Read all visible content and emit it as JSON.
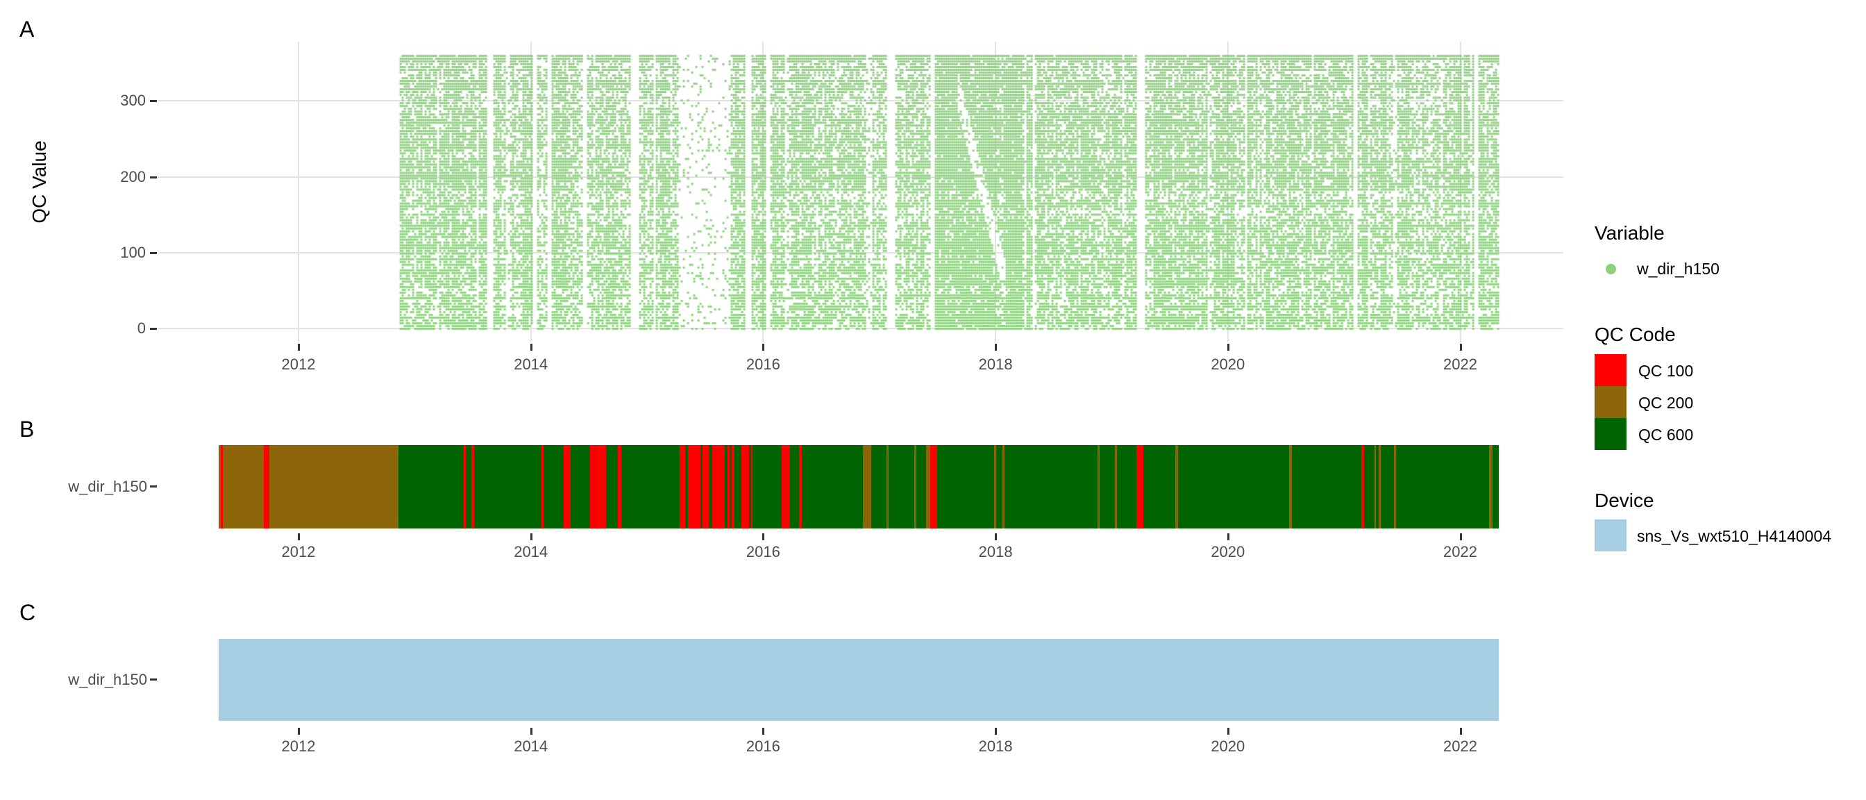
{
  "panels": {
    "a": {
      "tag": "A",
      "y_axis_title": "QC Value",
      "y_ticks": [
        "0",
        "100",
        "200",
        "300"
      ]
    },
    "b": {
      "tag": "B",
      "y_axis_label": "w_dir_h150"
    },
    "c": {
      "tag": "C",
      "y_axis_label": "w_dir_h150"
    }
  },
  "x_ticks": [
    "2012",
    "2014",
    "2016",
    "2018",
    "2020",
    "2022"
  ],
  "colors": {
    "variable_green": "#8BD17C",
    "qc100": "#FF0000",
    "qc200": "#8B6508",
    "qc600": "#006400",
    "device_blue": "#A6CEE3",
    "grid": "#E3E3E3",
    "axis_text": "#4D4D4D"
  },
  "legend": {
    "variable": {
      "title": "Variable",
      "items": [
        {
          "label": "w_dir_h150",
          "color": "#8BD17C",
          "shape": "dot"
        }
      ]
    },
    "qc_code": {
      "title": "QC Code",
      "items": [
        {
          "label": "QC 100",
          "color": "#FF0000"
        },
        {
          "label": "QC 200",
          "color": "#8B6508"
        },
        {
          "label": "QC 600",
          "color": "#006400"
        }
      ]
    },
    "device": {
      "title": "Device",
      "items": [
        {
          "label": "sns_Vs_wxt510_H4140004",
          "color": "#A6CEE3"
        }
      ]
    }
  },
  "chart_data": [
    {
      "id": "A",
      "type": "scatter",
      "ylabel": "QC Value",
      "x_tick_years": [
        2012,
        2014,
        2016,
        2018,
        2020,
        2022
      ],
      "y_tick_values": [
        0,
        100,
        200,
        300
      ],
      "x_range_years": [
        2010.78,
        2022.88
      ],
      "y_range": [
        -18,
        378
      ],
      "legend_position": "right",
      "grid": true,
      "series": [
        {
          "name": "w_dir_h150",
          "color": "#8BD17C",
          "x_start": 2012.87,
          "x_end": 2022.32,
          "y_min": 0,
          "y_max": 360,
          "base_density": 0.62,
          "regions": [
            {
              "from": 2013.62,
              "to": 2013.66,
              "density": 0
            },
            {
              "from": 2014.0,
              "to": 2014.05,
              "density": 0
            },
            {
              "from": 2014.05,
              "to": 2014.14,
              "density": 0.4
            },
            {
              "from": 2014.14,
              "to": 2014.17,
              "density": 0
            },
            {
              "from": 2014.44,
              "to": 2014.47,
              "density": 0
            },
            {
              "from": 2014.85,
              "to": 2014.92,
              "density": 0
            },
            {
              "from": 2015.04,
              "to": 2015.07,
              "density": 0
            },
            {
              "from": 2015.27,
              "to": 2015.7,
              "density": 0.1
            },
            {
              "from": 2015.84,
              "to": 2015.89,
              "density": 0
            },
            {
              "from": 2016.02,
              "to": 2016.06,
              "density": 0
            },
            {
              "from": 2016.88,
              "to": 2016.93,
              "density": 0.15
            },
            {
              "from": 2017.45,
              "to": 2018.25,
              "density": 0.93
            },
            {
              "from": 2017.05,
              "to": 2017.13,
              "density": 0
            },
            {
              "from": 2017.44,
              "to": 2017.47,
              "density": 0
            },
            {
              "from": 2018.31,
              "to": 2018.33,
              "density": 0
            },
            {
              "from": 2019.21,
              "to": 2019.27,
              "density": 0
            },
            {
              "from": 2020.14,
              "to": 2020.16,
              "density": 0
            },
            {
              "from": 2021.08,
              "to": 2021.1,
              "density": 0
            },
            {
              "from": 2021.58,
              "to": 2021.88,
              "density": 0.48
            },
            {
              "from": 2022.12,
              "to": 2022.14,
              "density": 0
            }
          ],
          "streak": {
            "from": 2017.66,
            "to": 2018.08,
            "v_at_from": 320,
            "slope": -620,
            "half_width": 26,
            "factor": 0.18
          }
        }
      ]
    },
    {
      "id": "B",
      "type": "timeline",
      "row_label": "w_dir_h150",
      "x_tick_years": [
        2012,
        2014,
        2016,
        2018,
        2020,
        2022
      ],
      "bar_start": 2011.31,
      "bar_end": 2022.33,
      "base_segments": [
        {
          "code": "QC 200",
          "from": 2011.31,
          "to": 2012.86
        },
        {
          "code": "QC 600",
          "from": 2012.86,
          "to": 2022.33
        }
      ],
      "events": [
        {
          "code": "QC 100",
          "from": 2011.33,
          "to": 2011.35
        },
        {
          "code": "QC 100",
          "from": 2011.7,
          "to": 2011.75
        },
        {
          "code": "QC 100",
          "from": 2013.42,
          "to": 2013.44
        },
        {
          "code": "QC 100",
          "from": 2013.49,
          "to": 2013.51
        },
        {
          "code": "QC 100",
          "from": 2014.09,
          "to": 2014.11
        },
        {
          "code": "QC 100",
          "from": 2014.28,
          "to": 2014.34
        },
        {
          "code": "QC 100",
          "from": 2014.51,
          "to": 2014.55
        },
        {
          "code": "QC 100",
          "from": 2014.56,
          "to": 2014.65
        },
        {
          "code": "QC 100",
          "from": 2014.75,
          "to": 2014.78
        },
        {
          "code": "QC 100",
          "from": 2015.28,
          "to": 2015.33
        },
        {
          "code": "QC 100",
          "from": 2015.35,
          "to": 2015.46
        },
        {
          "code": "QC 100",
          "from": 2015.48,
          "to": 2015.53
        },
        {
          "code": "QC 100",
          "from": 2015.56,
          "to": 2015.67
        },
        {
          "code": "QC 100",
          "from": 2015.69,
          "to": 2015.71
        },
        {
          "code": "QC 100",
          "from": 2015.73,
          "to": 2015.75
        },
        {
          "code": "QC 100",
          "from": 2015.81,
          "to": 2015.88
        },
        {
          "code": "QC 100",
          "from": 2015.895,
          "to": 2015.91
        },
        {
          "code": "QC 100",
          "from": 2016.16,
          "to": 2016.23
        },
        {
          "code": "QC 100",
          "from": 2016.31,
          "to": 2016.33
        },
        {
          "code": "QC 200",
          "from": 2016.86,
          "to": 2016.93
        },
        {
          "code": "QC 200",
          "from": 2017.06,
          "to": 2017.08
        },
        {
          "code": "QC 200",
          "from": 2017.3,
          "to": 2017.32
        },
        {
          "code": "QC 200",
          "from": 2017.4,
          "to": 2017.44
        },
        {
          "code": "QC 100",
          "from": 2017.44,
          "to": 2017.5
        },
        {
          "code": "QC 200",
          "from": 2017.99,
          "to": 2018.005
        },
        {
          "code": "QC 200",
          "from": 2018.06,
          "to": 2018.075
        },
        {
          "code": "QC 200",
          "from": 2018.88,
          "to": 2018.895
        },
        {
          "code": "QC 200",
          "from": 2019.03,
          "to": 2019.045
        },
        {
          "code": "QC 100",
          "from": 2019.21,
          "to": 2019.27
        },
        {
          "code": "QC 200",
          "from": 2019.55,
          "to": 2019.57
        },
        {
          "code": "QC 200",
          "from": 2020.53,
          "to": 2020.55
        },
        {
          "code": "QC 100",
          "from": 2021.15,
          "to": 2021.17
        },
        {
          "code": "QC 200",
          "from": 2021.26,
          "to": 2021.275
        },
        {
          "code": "QC 200",
          "from": 2021.3,
          "to": 2021.315
        },
        {
          "code": "QC 200",
          "from": 2021.43,
          "to": 2021.45
        },
        {
          "code": "QC 200",
          "from": 2022.25,
          "to": 2022.28
        }
      ]
    },
    {
      "id": "C",
      "type": "timeline",
      "row_label": "w_dir_h150",
      "x_tick_years": [
        2012,
        2014,
        2016,
        2018,
        2020,
        2022
      ],
      "bar_start": 2011.31,
      "bar_end": 2022.33,
      "base_segments": [
        {
          "code": "sns_Vs_wxt510_H4140004",
          "from": 2011.31,
          "to": 2022.33
        }
      ],
      "events": []
    }
  ]
}
